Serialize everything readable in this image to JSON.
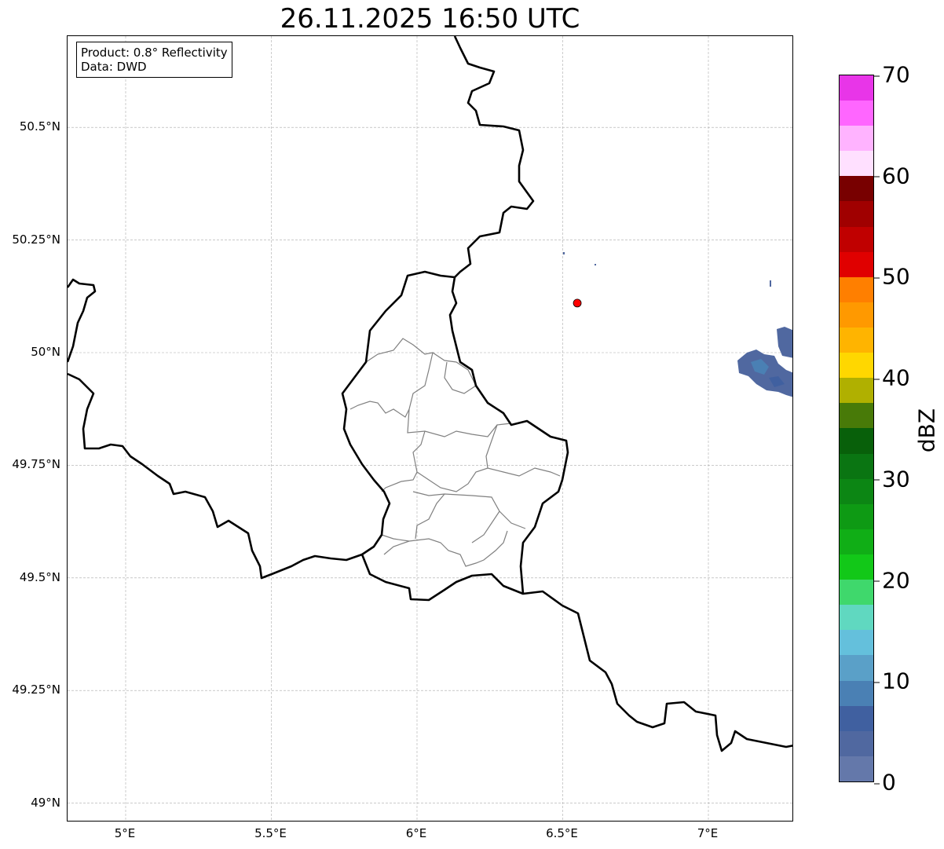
{
  "title": "26.11.2025 16:50 UTC",
  "info_box": {
    "line1": "Product: 0.8° Reflectivity",
    "line2": "Data: DWD"
  },
  "map": {
    "lon_range": [
      4.8,
      7.3
    ],
    "lat_range": [
      48.95,
      50.72
    ],
    "lat_ticks": [
      {
        "value": 50.5,
        "label": "50.5°N"
      },
      {
        "value": 50.25,
        "label": "50.25°N"
      },
      {
        "value": 50.0,
        "label": "50°N"
      },
      {
        "value": 49.75,
        "label": "49.75°N"
      },
      {
        "value": 49.5,
        "label": "49.5°N"
      },
      {
        "value": 49.25,
        "label": "49.25°N"
      },
      {
        "value": 49.0,
        "label": "49°N"
      }
    ],
    "lon_ticks": [
      {
        "value": 5.0,
        "label": "5°E"
      },
      {
        "value": 5.5,
        "label": "5.5°E"
      },
      {
        "value": 6.0,
        "label": "6°E"
      },
      {
        "value": 6.5,
        "label": "6.5°E"
      },
      {
        "value": 7.0,
        "label": "7°E"
      }
    ],
    "marker": {
      "lon": 6.55,
      "lat": 50.11,
      "color": "#ff0000"
    }
  },
  "colorbar": {
    "label": "dBZ",
    "ticks": [
      "0",
      "10",
      "20",
      "30",
      "40",
      "50",
      "60",
      "70"
    ],
    "colors": [
      "#6478aa",
      "#5068a0",
      "#4060a0",
      "#4a80b4",
      "#5aa0c8",
      "#64c0dc",
      "#60d8c0",
      "#3fd86c",
      "#12c818",
      "#10ae16",
      "#0e9a14",
      "#0c8614",
      "#0a7512",
      "#08600a",
      "#487a08",
      "#b0b000",
      "#ffd700",
      "#ffb400",
      "#ff9900",
      "#ff7f00",
      "#e00000",
      "#c00000",
      "#a00000",
      "#780000",
      "#ffe0ff",
      "#ffb3ff",
      "#ff66ff",
      "#e835e8"
    ]
  }
}
